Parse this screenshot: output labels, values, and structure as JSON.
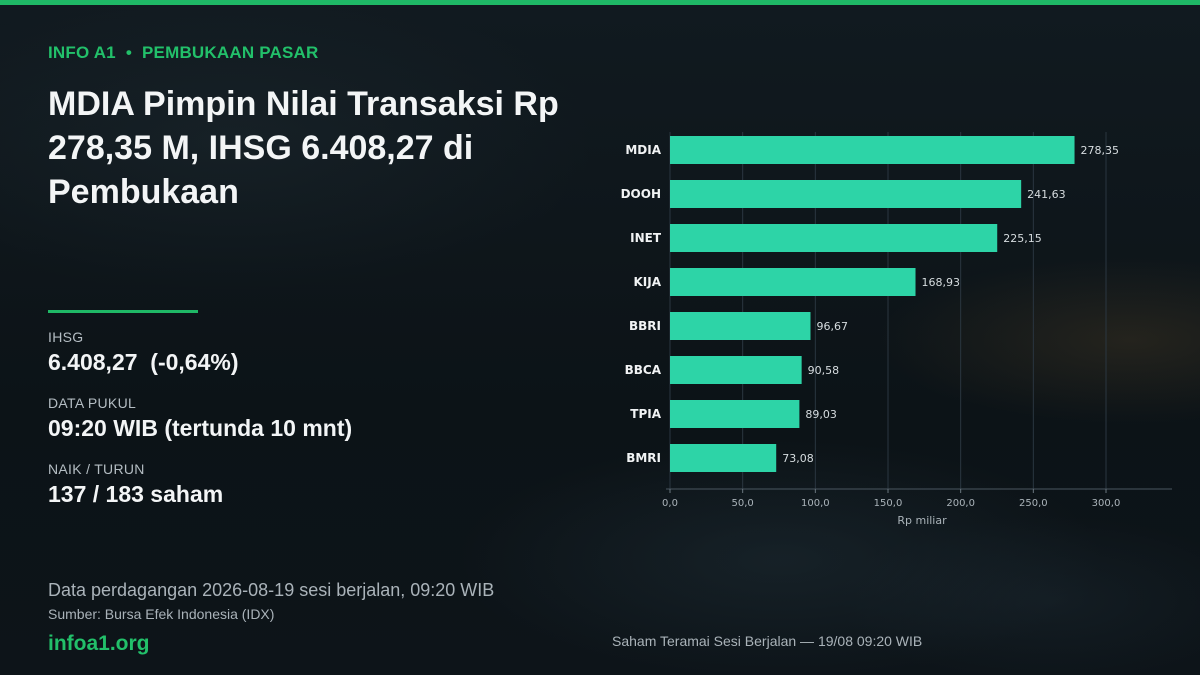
{
  "header": {
    "site_tag": "INFO A1",
    "separator": "•",
    "section": "PEMBUKAAN PASAR",
    "title": "MDIA Pimpin Nilai Transaksi Rp 278,35 M, IHSG 6.408,27 di Pembukaan"
  },
  "stats": {
    "ihsg_label": "IHSG",
    "ihsg_value": "6.408,27  (-0,64%)",
    "time_label": "DATA PUKUL",
    "time_value": "09:20 WIB (tertunda 10 mnt)",
    "breadth_label": "NAIK / TURUN",
    "breadth_value": "137 / 183 saham"
  },
  "footer": {
    "note": "Data perdagangan 2026-08-19 sesi berjalan, 09:20 WIB",
    "source": "Sumber: Bursa Efek Indonesia (IDX)",
    "brand": "infoa1.org",
    "chart_caption": "Saham Teramai Sesi Berjalan — 19/08 09:20 WIB"
  },
  "colors": {
    "accent": "#1fb866",
    "bar": "#2dd4a7",
    "background": "#0d1419"
  },
  "chart_data": {
    "type": "bar",
    "orientation": "horizontal",
    "categories": [
      "MDIA",
      "DOOH",
      "INET",
      "KIJA",
      "BBRI",
      "BBCA",
      "TPIA",
      "BMRI"
    ],
    "values": [
      278.35,
      241.63,
      225.15,
      168.93,
      96.67,
      90.58,
      89.03,
      73.08
    ],
    "value_labels": [
      "278,35",
      "241,63",
      "225,15",
      "168,93",
      "96,67",
      "90,58",
      "89,03",
      "73,08"
    ],
    "xlabel": "Rp miliar",
    "xlim": [
      0,
      300
    ],
    "xticks": [
      0,
      50,
      100,
      150,
      200,
      250,
      300
    ],
    "xtick_labels": [
      "0,0",
      "50,0",
      "100,0",
      "150,0",
      "200,0",
      "250,0",
      "300,0"
    ],
    "grid": "vertical"
  }
}
